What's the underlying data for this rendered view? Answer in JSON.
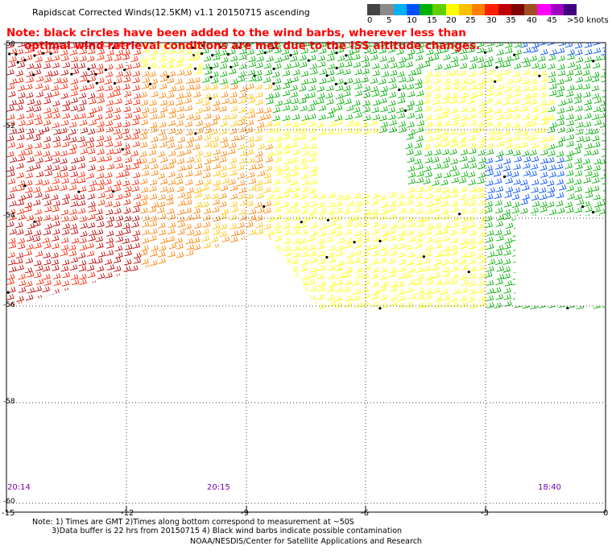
{
  "title": "Rapidscat Corrected Winds(12.5KM) v1.1 20150715 ascending",
  "colorbar": {
    "labels": [
      "0",
      "5",
      "10",
      "15",
      "20",
      "25",
      "30",
      "35",
      "40",
      "45",
      ">50 knots"
    ],
    "colors": [
      "#444444",
      "#8a8a8a",
      "#00b0f0",
      "#0050ff",
      "#00b000",
      "#60d000",
      "#ffff00",
      "#ffc000",
      "#ff8000",
      "#ff2000",
      "#c00000",
      "#800000",
      "#a05020",
      "#ff00ff",
      "#a000c0",
      "#400080"
    ]
  },
  "note": {
    "line1": "Note: black circles have been added to the wind barbs, wherever less than",
    "line2": "optimal wind retrieval conditions are met due to the ISS altitude changes."
  },
  "y_axis_labels": [
    "-50",
    "-52",
    "-54",
    "-56",
    "-58",
    "-60"
  ],
  "x_axis_labels": [
    "-15",
    "-12",
    "-9",
    "-6",
    "-3",
    "0"
  ],
  "times": [
    "20:14",
    "20:15",
    "18:40"
  ],
  "bottom_notes": {
    "line1": "Note: 1) Times are GMT 2)Times along bottom correspond to measurement at ~50S",
    "line2": "3)Data buffer is 22 hrs from 20150715 4) Black wind barbs indicate possible contamination"
  },
  "credit": "NOAA/NESDIS/Center for Satellite Applications and Research",
  "map_data": {
    "lon_range": [
      -15,
      0
    ],
    "lat_range": [
      -60,
      -50
    ],
    "wind_regions": [
      {
        "speed_band": "35-40",
        "color": "#ff2000"
      },
      {
        "speed_band": "30-35",
        "color": "#c00000"
      },
      {
        "speed_band": "25-30",
        "color": "#ff8000"
      },
      {
        "speed_band": "20-25",
        "color": "#ffc000"
      },
      {
        "speed_band": "15-20",
        "color": "#ffff00"
      },
      {
        "speed_band": "10-15",
        "color": "#00b000"
      },
      {
        "speed_band": "5-10",
        "color": "#0050ff"
      }
    ]
  }
}
